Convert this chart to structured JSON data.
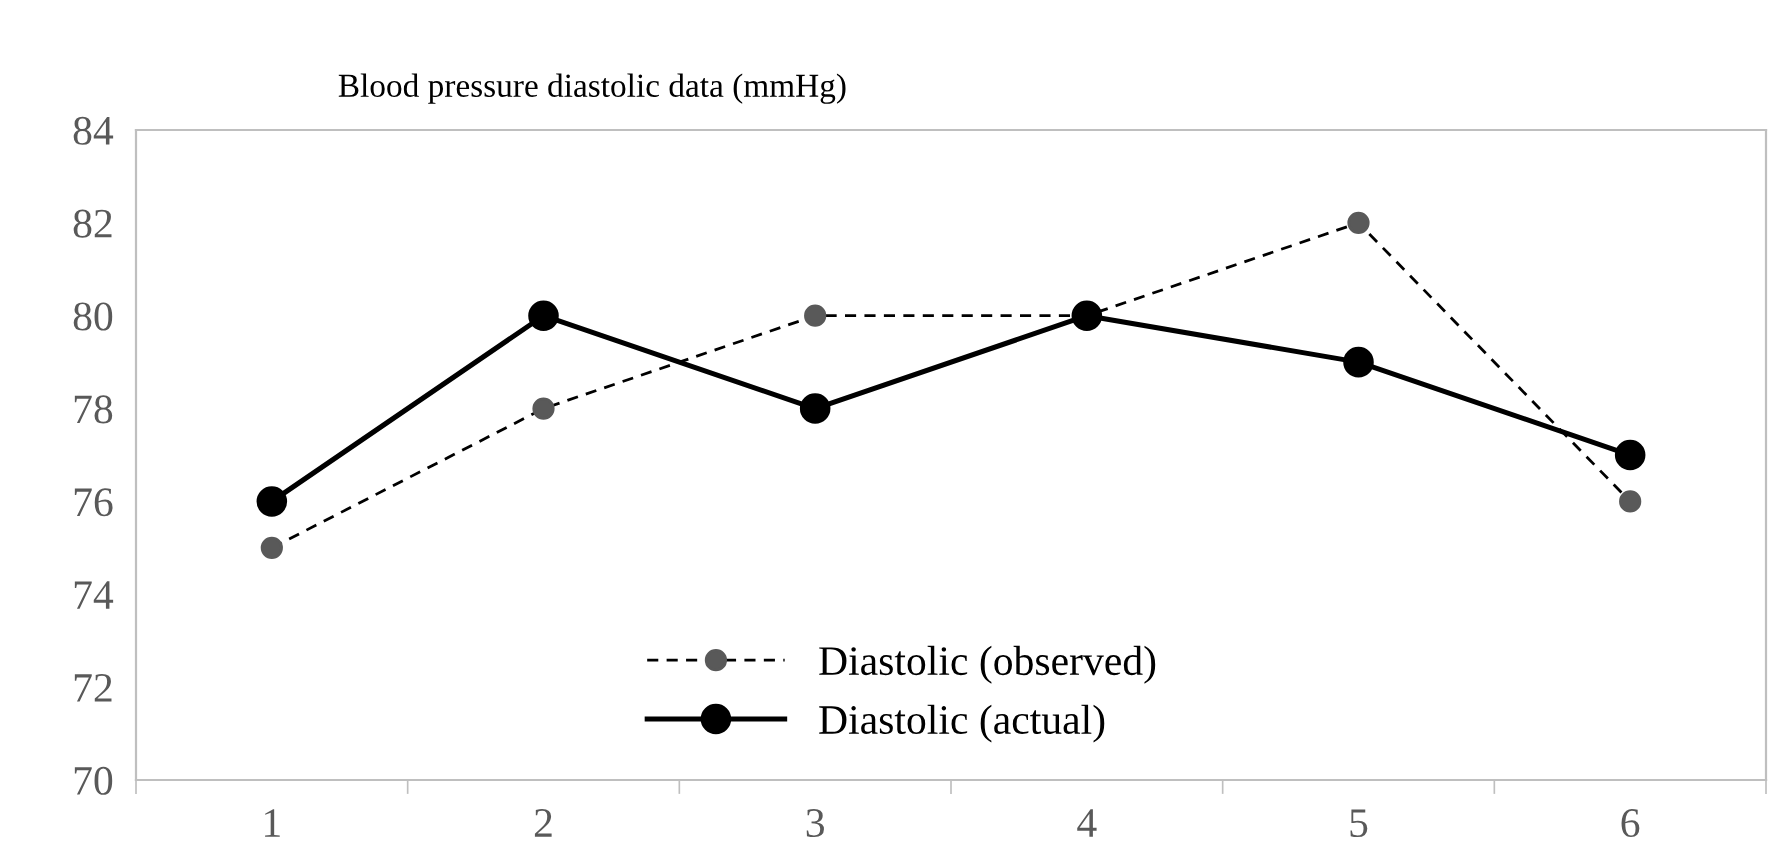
{
  "chart_data": {
    "type": "line",
    "title": "Blood pressure diastolic data (mmHg)",
    "categories": [
      "1",
      "2",
      "3",
      "4",
      "5",
      "6"
    ],
    "series": [
      {
        "name": "Diastolic (observed)",
        "color": "#595959",
        "values": [
          75,
          78,
          80,
          80,
          82,
          76
        ],
        "line_style": "dashed",
        "marker": "circle"
      },
      {
        "name": "Diastolic (actual)",
        "color": "#000000",
        "values": [
          76,
          80,
          78,
          80,
          79,
          77
        ],
        "line_style": "solid",
        "marker": "circle"
      }
    ],
    "ylim": [
      70,
      84
    ],
    "yticks": [
      70,
      72,
      74,
      76,
      78,
      80,
      82,
      84
    ],
    "grid": false,
    "legend": "bottom"
  }
}
